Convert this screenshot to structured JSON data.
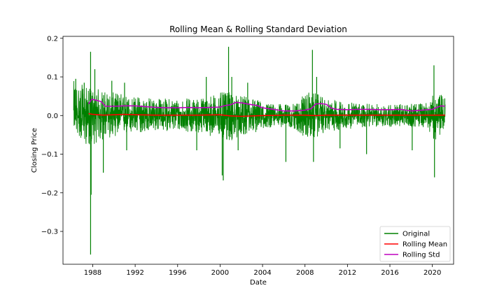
{
  "chart_data": {
    "type": "line",
    "title": "Rolling Mean & Rolling Standard Deviation",
    "xlabel": "Date",
    "ylabel": "Closing Price",
    "xlim": [
      1985.2,
      2022.0
    ],
    "ylim": [
      -0.385,
      0.205
    ],
    "x_ticks": [
      1988,
      1992,
      1996,
      2000,
      2004,
      2008,
      2012,
      2016,
      2020
    ],
    "x_tick_labels": [
      "1988",
      "1992",
      "1996",
      "2000",
      "2004",
      "2008",
      "2012",
      "2016",
      "2020"
    ],
    "y_ticks": [
      -0.3,
      -0.2,
      -0.1,
      0.0,
      0.1,
      0.2
    ],
    "y_tick_labels": [
      "−0.3",
      "−0.2",
      "−0.1",
      "0.0",
      "0.1",
      "0.2"
    ],
    "grid": false,
    "legend_position": "lower-right",
    "series": [
      {
        "name": "Original",
        "color": "#008000",
        "envelope_x": [
          1986.2,
          1987.0,
          1987.7,
          1988.5,
          1989.5,
          1990.5,
          1991.5,
          1992.5,
          1994,
          1996,
          1998,
          2000,
          2001,
          2002,
          2003,
          2004,
          2005,
          2006,
          2007,
          2008,
          2009,
          2010,
          2011,
          2012,
          2014,
          2016,
          2018,
          2019.5,
          2020.3,
          2021.2
        ],
        "envelope_upper": [
          0.09,
          0.08,
          0.07,
          0.07,
          0.06,
          0.06,
          0.05,
          0.05,
          0.045,
          0.045,
          0.045,
          0.06,
          0.06,
          0.05,
          0.05,
          0.035,
          0.03,
          0.03,
          0.03,
          0.06,
          0.06,
          0.04,
          0.04,
          0.035,
          0.03,
          0.03,
          0.03,
          0.035,
          0.06,
          0.05
        ],
        "envelope_lower": [
          -0.03,
          -0.07,
          -0.08,
          -0.07,
          -0.06,
          -0.05,
          -0.05,
          -0.045,
          -0.04,
          -0.04,
          -0.045,
          -0.06,
          -0.07,
          -0.05,
          -0.05,
          -0.035,
          -0.03,
          -0.03,
          -0.035,
          -0.06,
          -0.06,
          -0.04,
          -0.04,
          -0.035,
          -0.03,
          -0.03,
          -0.03,
          -0.03,
          -0.07,
          -0.03
        ],
        "spikes": [
          {
            "x": 1986.4,
            "y": 0.095
          },
          {
            "x": 1987.2,
            "y": 0.085
          },
          {
            "x": 1987.8,
            "y": 0.165
          },
          {
            "x": 1987.8,
            "y": -0.36
          },
          {
            "x": 1987.85,
            "y": -0.205
          },
          {
            "x": 1988.2,
            "y": 0.12
          },
          {
            "x": 1989.0,
            "y": -0.148
          },
          {
            "x": 1989.8,
            "y": 0.09
          },
          {
            "x": 1991.0,
            "y": 0.085
          },
          {
            "x": 1991.2,
            "y": -0.09
          },
          {
            "x": 1997.8,
            "y": -0.09
          },
          {
            "x": 1998.7,
            "y": 0.1
          },
          {
            "x": 2000.2,
            "y": -0.155
          },
          {
            "x": 2000.3,
            "y": -0.168
          },
          {
            "x": 2000.8,
            "y": 0.178
          },
          {
            "x": 2001.1,
            "y": 0.1
          },
          {
            "x": 2001.7,
            "y": -0.09
          },
          {
            "x": 2002.6,
            "y": 0.085
          },
          {
            "x": 2006.2,
            "y": -0.12
          },
          {
            "x": 2008.7,
            "y": 0.17
          },
          {
            "x": 2008.8,
            "y": -0.12
          },
          {
            "x": 2009.1,
            "y": 0.1
          },
          {
            "x": 2011.3,
            "y": -0.085
          },
          {
            "x": 2013.8,
            "y": -0.1
          },
          {
            "x": 2018.1,
            "y": -0.09
          },
          {
            "x": 2020.15,
            "y": 0.13
          },
          {
            "x": 2020.2,
            "y": -0.16
          }
        ]
      },
      {
        "name": "Rolling Mean",
        "color": "#ff0000",
        "x": [
          1987.6,
          1988.0,
          1989.0,
          1990.0,
          1991.0,
          1992.0,
          1994.0,
          1996.0,
          1998.0,
          2000.0,
          2001.0,
          2002.0,
          2004.0,
          2006.0,
          2008.0,
          2009.0,
          2010.0,
          2012.0,
          2014.0,
          2016.0,
          2018.0,
          2020.0,
          2021.2
        ],
        "y": [
          0.005,
          0.003,
          0.001,
          0.002,
          0.003,
          0.002,
          0.001,
          0.001,
          0.001,
          0.002,
          -0.001,
          -0.002,
          0.0,
          0.001,
          0.001,
          0.0,
          0.001,
          0.001,
          0.001,
          0.001,
          0.001,
          0.001,
          0.001
        ]
      },
      {
        "name": "Rolling Std",
        "color": "#bf00bf",
        "x": [
          1987.6,
          1987.9,
          1988.3,
          1988.8,
          1989.2,
          1990.0,
          1991.0,
          1992.0,
          1993.0,
          1994.0,
          1995.0,
          1996.0,
          1997.0,
          1998.0,
          1999.0,
          2000.0,
          2000.5,
          2001.0,
          2001.5,
          2002.0,
          2003.0,
          2003.5,
          2004.0,
          2005.0,
          2006.0,
          2007.0,
          2008.0,
          2008.6,
          2009.0,
          2009.5,
          2010.0,
          2010.5,
          2011.0,
          2012.0,
          2013.0,
          2014.0,
          2015.0,
          2016.0,
          2017.0,
          2018.0,
          2019.0,
          2020.0,
          2020.3,
          2020.8,
          2021.2
        ],
        "y": [
          0.03,
          0.042,
          0.04,
          0.036,
          0.024,
          0.024,
          0.025,
          0.025,
          0.023,
          0.021,
          0.02,
          0.02,
          0.021,
          0.02,
          0.021,
          0.022,
          0.026,
          0.028,
          0.034,
          0.033,
          0.028,
          0.026,
          0.02,
          0.016,
          0.012,
          0.012,
          0.014,
          0.018,
          0.03,
          0.031,
          0.029,
          0.019,
          0.016,
          0.015,
          0.016,
          0.016,
          0.015,
          0.015,
          0.016,
          0.012,
          0.014,
          0.016,
          0.02,
          0.025,
          0.024
        ]
      }
    ]
  }
}
